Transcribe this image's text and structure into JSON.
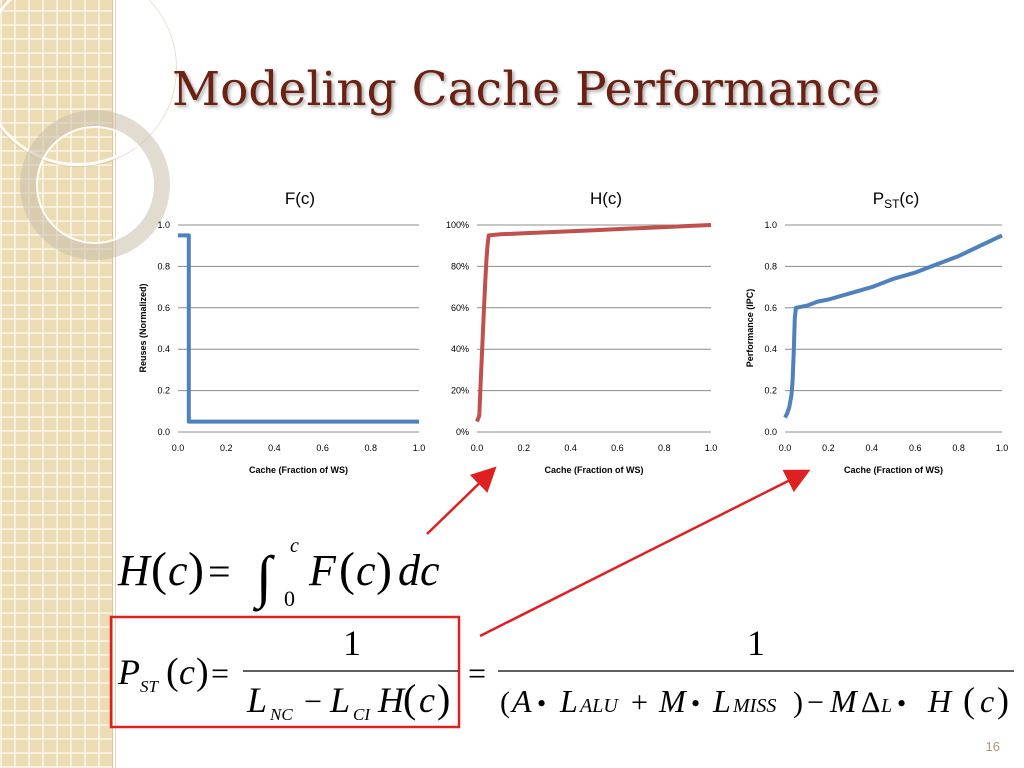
{
  "slide": {
    "title": "Modeling Cache Performance",
    "page_number": "16"
  },
  "colors": {
    "title": "#6b2212",
    "series_f": "#4f81bd",
    "series_h": "#c0504d",
    "series_p": "#4f81bd",
    "highlight": "#e02020"
  },
  "chart_data": [
    {
      "type": "line",
      "title": "F(c)",
      "xlabel": "Cache (Fraction of WS)",
      "ylabel": "Reuses (Normalized)",
      "xlim": [
        0,
        1
      ],
      "ylim": [
        0,
        1
      ],
      "x_ticks": [
        "0.0",
        "0.2",
        "0.4",
        "0.6",
        "0.8",
        "1.0"
      ],
      "y_ticks": [
        "0.0",
        "0.2",
        "0.4",
        "0.6",
        "0.8",
        "1.0"
      ],
      "grid": true,
      "series": [
        {
          "x": [
            0.0,
            0.045,
            0.045,
            1.0
          ],
          "y": [
            0.95,
            0.95,
            0.05,
            0.05
          ]
        }
      ]
    },
    {
      "type": "line",
      "title": "H(c)",
      "xlabel": "Cache (Fraction of WS)",
      "ylabel": "",
      "xlim": [
        0,
        1
      ],
      "ylim": [
        0,
        1
      ],
      "x_ticks": [
        "0.0",
        "0.2",
        "0.4",
        "0.6",
        "0.8",
        "1.0"
      ],
      "y_ticks": [
        "0%",
        "20%",
        "40%",
        "60%",
        "80%",
        "100%"
      ],
      "grid": true,
      "series": [
        {
          "x": [
            0.0,
            0.01,
            0.015,
            0.02,
            0.025,
            0.03,
            0.035,
            0.04,
            0.045,
            0.05,
            0.1,
            0.2,
            0.3,
            0.4,
            0.5,
            0.6,
            0.7,
            0.8,
            0.9,
            1.0
          ],
          "y": [
            0.05,
            0.08,
            0.22,
            0.35,
            0.48,
            0.6,
            0.72,
            0.83,
            0.9,
            0.95,
            0.955,
            0.96,
            0.965,
            0.97,
            0.975,
            0.98,
            0.985,
            0.99,
            0.995,
            1.0
          ]
        }
      ]
    },
    {
      "type": "line",
      "title": "P_ST(c)",
      "xlabel": "Cache (Fraction of WS)",
      "ylabel": "Performance (IPC)",
      "xlim": [
        0,
        1
      ],
      "ylim": [
        0,
        1
      ],
      "x_ticks": [
        "0.0",
        "0.2",
        "0.4",
        "0.6",
        "0.8",
        "1.0"
      ],
      "y_ticks": [
        "0.0",
        "0.2",
        "0.4",
        "0.6",
        "0.8",
        "1.0"
      ],
      "grid": true,
      "series": [
        {
          "x": [
            0.0,
            0.01,
            0.02,
            0.03,
            0.035,
            0.04,
            0.045,
            0.05,
            0.1,
            0.15,
            0.2,
            0.3,
            0.4,
            0.5,
            0.6,
            0.7,
            0.8,
            0.9,
            1.0
          ],
          "y": [
            0.07,
            0.09,
            0.12,
            0.18,
            0.25,
            0.38,
            0.55,
            0.6,
            0.61,
            0.63,
            0.64,
            0.67,
            0.7,
            0.74,
            0.77,
            0.81,
            0.85,
            0.9,
            0.95
          ]
        }
      ]
    }
  ],
  "chart_labels": {
    "p_title_main": "P",
    "p_title_sub": "ST",
    "p_title_rest": "(c)"
  },
  "equation1": {
    "H": "H",
    "lp": "(",
    "c": "c",
    "rp": ")",
    "eq": "=",
    "int": "∫",
    "upper": "c",
    "lower": "0",
    "F": "F",
    "dc": "dc"
  },
  "equation2": {
    "P": "P",
    "P_sub": "ST",
    "lp": "(",
    "c": "c",
    "rp": ")",
    "eq": "=",
    "num1": "1",
    "L": "L",
    "NC": "NC",
    "minus": "−",
    "CI": "CI",
    "H": "H",
    "eq2": "=",
    "num2": "1",
    "A": "A",
    "dot": "•",
    "ALU": "ALU",
    "plus": "+",
    "M": "M",
    "MISS": "MISS",
    "Delta": "Δ",
    "Lsub": "L"
  }
}
